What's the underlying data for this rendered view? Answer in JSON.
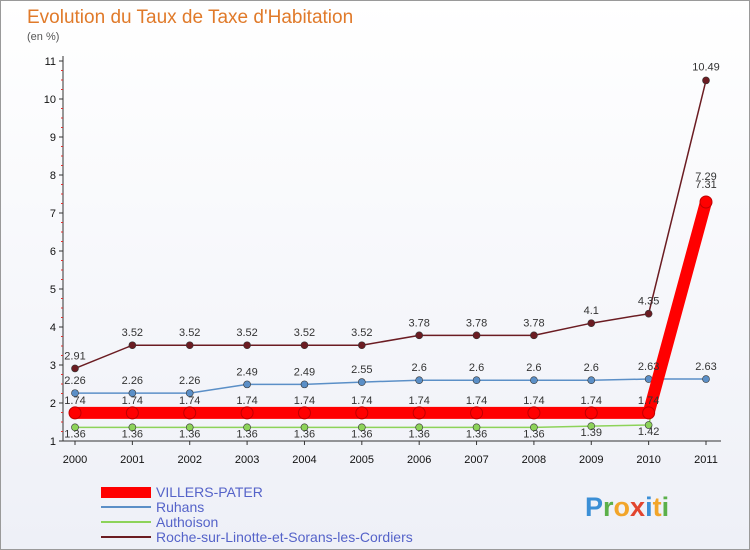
{
  "title": "Evolution du Taux de Taxe d'Habitation",
  "subtitle": "(en %)",
  "logo": "Proxiti",
  "chart_data": {
    "type": "line",
    "title": "Evolution du Taux de Taxe d'Habitation",
    "subtitle": "(en %)",
    "x": [
      2000,
      2001,
      2002,
      2003,
      2004,
      2005,
      2006,
      2007,
      2008,
      2009,
      2010,
      2011
    ],
    "ylim": [
      1,
      11
    ],
    "yticks": [
      1,
      2,
      3,
      4,
      5,
      6,
      7,
      8,
      9,
      10,
      11
    ],
    "legend_position": "bottom",
    "series": [
      {
        "name": "VILLERS-PATER",
        "color": "#ff0000",
        "values": [
          1.74,
          1.74,
          1.74,
          1.74,
          1.74,
          1.74,
          1.74,
          1.74,
          1.74,
          1.74,
          1.74,
          7.29
        ],
        "labels": [
          "1.74",
          "1.74",
          "1.74",
          "1.74",
          "1.74",
          "1.74",
          "1.74",
          "1.74",
          "1.74",
          "1.74",
          "1.74",
          "7.29"
        ]
      },
      {
        "name": "Ruhans",
        "color": "#5b8fc7",
        "values": [
          2.26,
          2.26,
          2.26,
          2.49,
          2.49,
          2.55,
          2.6,
          2.6,
          2.6,
          2.6,
          2.63,
          2.63
        ],
        "labels": [
          "2.26",
          "2.26",
          "2.26",
          "2.49",
          "2.49",
          "2.55",
          "2.6",
          "2.6",
          "2.6",
          "2.6",
          "2.63",
          "2.63"
        ]
      },
      {
        "name": "Authoison",
        "color": "#8dd35a",
        "values": [
          1.36,
          1.36,
          1.36,
          1.36,
          1.36,
          1.36,
          1.36,
          1.36,
          1.36,
          1.39,
          1.42,
          7.31
        ],
        "labels": [
          "1.36",
          "1.36",
          "1.36",
          "1.36",
          "1.36",
          "1.36",
          "1.36",
          "1.36",
          "1.36",
          "1.39",
          "1.42",
          "7.31"
        ]
      },
      {
        "name": "Roche-sur-Linotte-et-Sorans-les-Cordiers",
        "color": "#6b1c22",
        "values": [
          2.91,
          3.52,
          3.52,
          3.52,
          3.52,
          3.52,
          3.78,
          3.78,
          3.78,
          4.1,
          4.35,
          10.49
        ],
        "labels": [
          "2.91",
          "3.52",
          "3.52",
          "3.52",
          "3.52",
          "3.52",
          "3.78",
          "3.78",
          "3.78",
          "4.1",
          "4.35",
          "10.49"
        ]
      }
    ]
  }
}
